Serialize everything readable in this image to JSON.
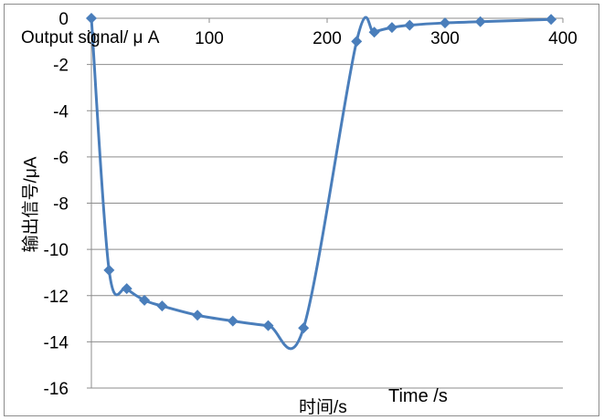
{
  "chart_data": {
    "type": "line",
    "title": "Output signal/ μ A",
    "xlabel": "时间/s",
    "xlabel_en": "Time /s",
    "ylabel": "输出信号/μA",
    "xlim": [
      0,
      400
    ],
    "ylim": [
      -16,
      0
    ],
    "x_ticks": [
      0,
      100,
      200,
      300,
      400
    ],
    "y_ticks": [
      0,
      -2,
      -4,
      -6,
      -8,
      -10,
      -12,
      -14,
      -16
    ],
    "grid": true,
    "legend": "none",
    "series": [
      {
        "color": "#4a7ebb",
        "marker": "diamond",
        "smooth": true,
        "x": [
          0,
          15,
          30,
          45,
          60,
          90,
          120,
          150,
          180,
          225,
          240,
          255,
          270,
          300,
          330,
          390
        ],
        "y": [
          0,
          -10.9,
          -11.7,
          -12.2,
          -12.45,
          -12.85,
          -13.1,
          -13.3,
          -13.4,
          -1.0,
          -0.6,
          -0.4,
          -0.3,
          -0.2,
          -0.15,
          -0.05
        ]
      }
    ]
  }
}
